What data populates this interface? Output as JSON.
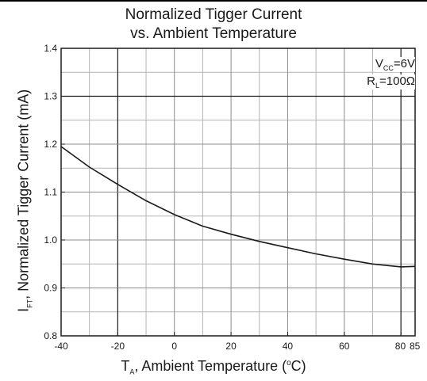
{
  "chart_data": {
    "type": "line",
    "title_line1": "Normalized Tigger Current",
    "title_line2": "vs. Ambient Temperature",
    "xlabel": {
      "main": "T",
      "sub": "A",
      "rest": ", Ambient Temperature (",
      "sup": "o",
      "unit": "C)"
    },
    "ylabel": {
      "main": "I",
      "sub": "FT",
      "rest": ", Normalized Tigger Current (mA)"
    },
    "conditions": {
      "vcc": {
        "main": "V",
        "sub": "CC",
        "value": "=6V"
      },
      "rl": {
        "main": "R",
        "sub": "L",
        "value": "=100Ω"
      }
    },
    "xlim": [
      -40,
      85
    ],
    "ylim": [
      0.8,
      1.4
    ],
    "x_ticks": [
      {
        "value": -40,
        "label": "-40"
      },
      {
        "value": -20,
        "label": "-20"
      },
      {
        "value": 0,
        "label": "0"
      },
      {
        "value": 20,
        "label": "20"
      },
      {
        "value": 40,
        "label": "40"
      },
      {
        "value": 60,
        "label": "60"
      },
      {
        "value": 80,
        "label": "80"
      },
      {
        "value": 85,
        "label": "85"
      }
    ],
    "y_ticks": [
      {
        "value": 0.8,
        "label": "0.8"
      },
      {
        "value": 0.9,
        "label": "0.9"
      },
      {
        "value": 1.0,
        "label": "1.0"
      },
      {
        "value": 1.1,
        "label": "1.1"
      },
      {
        "value": 1.2,
        "label": "1.2"
      },
      {
        "value": 1.3,
        "label": "1.3"
      },
      {
        "value": 1.4,
        "label": "1.4"
      }
    ],
    "grid": true,
    "series": [
      {
        "x": [
          -40,
          -30,
          -20,
          -10,
          0,
          10,
          20,
          30,
          40,
          50,
          60,
          70,
          80,
          85
        ],
        "y": [
          1.195,
          1.152,
          1.116,
          1.082,
          1.053,
          1.029,
          1.012,
          0.997,
          0.984,
          0.971,
          0.96,
          0.95,
          0.944,
          0.945
        ]
      }
    ]
  }
}
